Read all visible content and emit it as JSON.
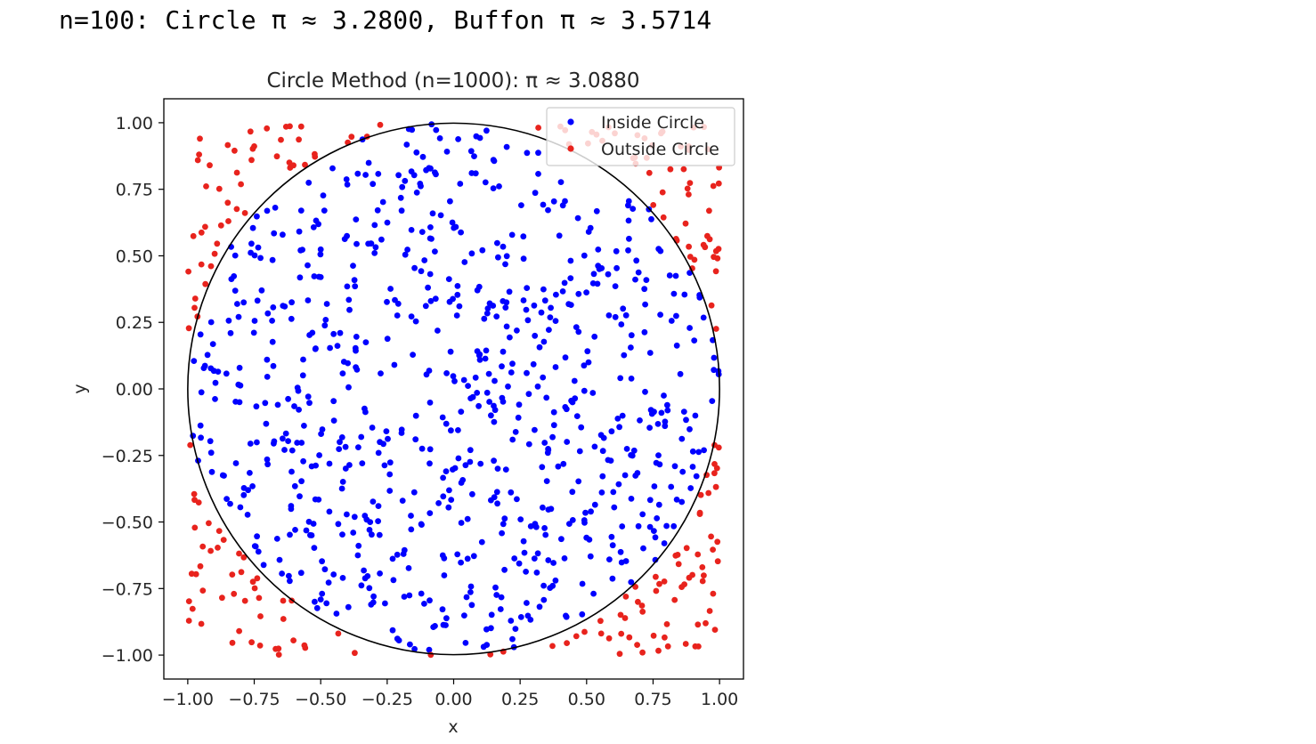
{
  "output": {
    "line": "n=100: Circle π ≈ 3.2800, Buffon π ≈ 3.5714"
  },
  "chart_data": {
    "type": "scatter",
    "title": "Circle Method (n=1000): π ≈ 3.0880",
    "xlabel": "x",
    "ylabel": "y",
    "xlim": [
      -1.09,
      1.09
    ],
    "ylim": [
      -1.09,
      1.09
    ],
    "xticks": [
      -1.0,
      -0.75,
      -0.5,
      -0.25,
      0.0,
      0.25,
      0.5,
      0.75,
      1.0
    ],
    "yticks": [
      -1.0,
      -0.75,
      -0.5,
      -0.25,
      0.0,
      0.25,
      0.5,
      0.75,
      1.0
    ],
    "xtick_labels": [
      "−1.00",
      "−0.75",
      "−0.50",
      "−0.25",
      "0.00",
      "0.25",
      "0.50",
      "0.75",
      "1.00"
    ],
    "ytick_labels": [
      "−1.00",
      "−0.75",
      "−0.50",
      "−0.25",
      "0.00",
      "0.25",
      "0.50",
      "0.75",
      "1.00"
    ],
    "grid": false,
    "legend_position": "top-right",
    "circle": {
      "center": [
        0,
        0
      ],
      "radius": 1,
      "color": "#000000"
    },
    "n_points": 1000,
    "series": [
      {
        "name": "Inside Circle",
        "color": "#0000ff",
        "count": 772
      },
      {
        "name": "Outside Circle",
        "color": "#e8231d",
        "count": 228
      }
    ]
  }
}
